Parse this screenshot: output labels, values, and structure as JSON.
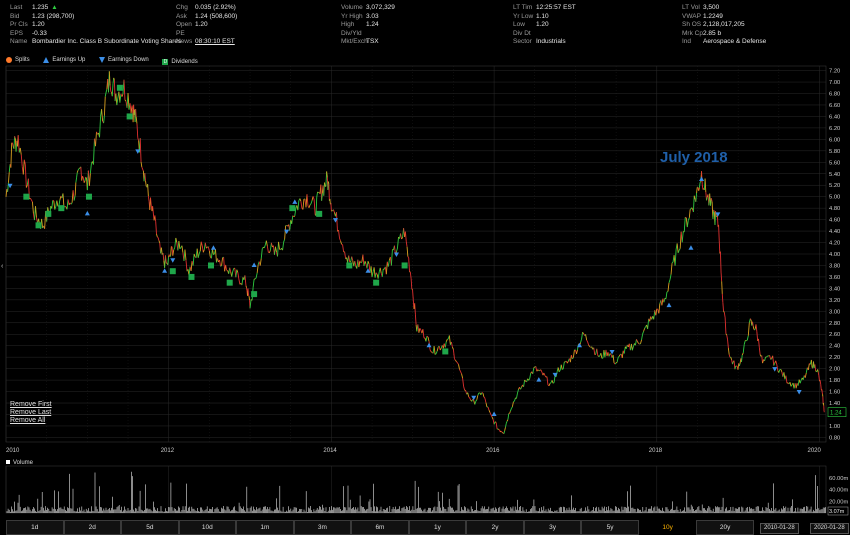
{
  "quote": {
    "col1": [
      {
        "k": "Last",
        "v": "1.235",
        "arrow": "▲"
      },
      {
        "k": "Bid",
        "v": "1.23 (298,700)"
      },
      {
        "k": "Pr Cls",
        "v": "1.20"
      },
      {
        "k": "EPS",
        "v": "-0.33"
      },
      {
        "k": "Name",
        "v": "Bombardier Inc. Class B Subordinate Voting Shares"
      }
    ],
    "col2": [
      {
        "k": "Chg",
        "v": "0.035 (2.92%)"
      },
      {
        "k": "Ask",
        "v": "1.24 (508,600)"
      },
      {
        "k": "Open",
        "v": "1.20"
      },
      {
        "k": "PE",
        "v": ""
      },
      {
        "k": "News",
        "v": "08:30:10 EST"
      }
    ],
    "col3": [
      {
        "k": "Volume",
        "v": "3,072,329"
      },
      {
        "k": "Yr High",
        "v": "3.03"
      },
      {
        "k": "High",
        "v": "1.24"
      },
      {
        "k": "Div/Yld",
        "v": ""
      },
      {
        "k": "Mkt/Exch",
        "v": "TSX"
      }
    ],
    "col4": [
      {
        "k": "LT Tim",
        "v": "12:25:57 EST"
      },
      {
        "k": "Yr Low",
        "v": "1.10"
      },
      {
        "k": "Low",
        "v": "1.20"
      },
      {
        "k": "Div Dt",
        "v": ""
      },
      {
        "k": "Sector",
        "v": "Industrials"
      }
    ],
    "col5": [
      {
        "k": "LT Vol",
        "v": "3,500"
      },
      {
        "k": "VWAP",
        "v": "1.2249"
      },
      {
        "k": "Sh OS",
        "v": "2,128,017,205"
      },
      {
        "k": "Mrk Cp",
        "v": "2.85 b"
      },
      {
        "k": "Ind",
        "v": "Aerospace & Defense"
      }
    ]
  },
  "legend": {
    "splits": "Splits",
    "earnings_up": "Earnings Up",
    "earnings_down": "Earnings Down",
    "dividends": "Dividends",
    "dividend_marker": "D"
  },
  "annotation": {
    "text": "July 2018"
  },
  "left_handle": "‹",
  "remove_links": {
    "first": "Remove First",
    "last": "Remove Last",
    "all": "Remove All"
  },
  "volume_label": "Volume",
  "tabs": [
    "1d",
    "2d",
    "5d",
    "10d",
    "1m",
    "3m",
    "6m",
    "1y",
    "2y",
    "3y",
    "5y",
    "10y",
    "20y"
  ],
  "selected_tab": "10y",
  "date_range": {
    "start": "2010-01-28",
    "end": "2020-01-28"
  },
  "colors": {
    "up": "#2ecc40",
    "down": "#e03030",
    "accent_tab": "#ffb400",
    "annotation": "#1f5fa8",
    "earnings_up": "#3b8ee8",
    "dividend": "#1fa64a"
  },
  "chart_data": {
    "type": "line",
    "y_axis_ticks": [
      "7.20",
      "7.00",
      "6.80",
      "6.60",
      "6.40",
      "6.20",
      "6.00",
      "5.80",
      "5.60",
      "5.40",
      "5.20",
      "5.00",
      "4.80",
      "4.60",
      "4.40",
      "4.20",
      "4.00",
      "3.80",
      "3.60",
      "3.40",
      "3.20",
      "3.00",
      "2.80",
      "2.60",
      "2.40",
      "2.20",
      "2.00",
      "1.80",
      "1.60",
      "1.40",
      "1.20",
      "1.00",
      "0.80"
    ],
    "ylim": [
      0.72,
      7.28
    ],
    "x_axis_ticks": [
      "2010",
      "2012",
      "2014",
      "2016",
      "2018",
      "2020"
    ],
    "xlim": [
      2010.0,
      2020.08
    ],
    "price_points": [
      [
        2010.0,
        5.0
      ],
      [
        2010.08,
        5.9
      ],
      [
        2010.15,
        6.0
      ],
      [
        2010.25,
        5.3
      ],
      [
        2010.35,
        4.7
      ],
      [
        2010.45,
        4.5
      ],
      [
        2010.55,
        4.8
      ],
      [
        2010.65,
        5.0
      ],
      [
        2010.75,
        4.8
      ],
      [
        2010.85,
        5.1
      ],
      [
        2010.92,
        5.5
      ],
      [
        2011.0,
        5.2
      ],
      [
        2011.1,
        5.9
      ],
      [
        2011.2,
        6.5
      ],
      [
        2011.28,
        7.1
      ],
      [
        2011.35,
        6.8
      ],
      [
        2011.45,
        6.9
      ],
      [
        2011.55,
        6.6
      ],
      [
        2011.6,
        6.3
      ],
      [
        2011.68,
        5.6
      ],
      [
        2011.75,
        5.0
      ],
      [
        2011.82,
        4.6
      ],
      [
        2011.9,
        4.0
      ],
      [
        2011.98,
        3.8
      ],
      [
        2012.05,
        4.1
      ],
      [
        2012.15,
        4.2
      ],
      [
        2012.25,
        3.7
      ],
      [
        2012.35,
        4.0
      ],
      [
        2012.45,
        4.2
      ],
      [
        2012.55,
        4.0
      ],
      [
        2012.65,
        3.9
      ],
      [
        2012.75,
        3.7
      ],
      [
        2012.85,
        3.6
      ],
      [
        2012.95,
        3.5
      ],
      [
        2013.0,
        3.1
      ],
      [
        2013.1,
        3.8
      ],
      [
        2013.2,
        4.2
      ],
      [
        2013.3,
        4.0
      ],
      [
        2013.4,
        4.2
      ],
      [
        2013.5,
        4.6
      ],
      [
        2013.6,
        4.9
      ],
      [
        2013.7,
        5.0
      ],
      [
        2013.8,
        4.8
      ],
      [
        2013.88,
        5.1
      ],
      [
        2013.95,
        5.3
      ],
      [
        2014.0,
        4.9
      ],
      [
        2014.1,
        4.4
      ],
      [
        2014.2,
        3.9
      ],
      [
        2014.3,
        3.8
      ],
      [
        2014.4,
        3.9
      ],
      [
        2014.5,
        3.7
      ],
      [
        2014.6,
        3.7
      ],
      [
        2014.7,
        3.8
      ],
      [
        2014.8,
        4.1
      ],
      [
        2014.9,
        4.4
      ],
      [
        2014.98,
        3.6
      ],
      [
        2015.05,
        2.7
      ],
      [
        2015.15,
        2.6
      ],
      [
        2015.25,
        2.3
      ],
      [
        2015.35,
        2.4
      ],
      [
        2015.45,
        2.5
      ],
      [
        2015.55,
        2.1
      ],
      [
        2015.65,
        1.6
      ],
      [
        2015.75,
        1.4
      ],
      [
        2015.85,
        1.6
      ],
      [
        2015.95,
        1.2
      ],
      [
        2016.05,
        0.95
      ],
      [
        2016.12,
        0.9
      ],
      [
        2016.2,
        1.3
      ],
      [
        2016.3,
        1.6
      ],
      [
        2016.4,
        1.8
      ],
      [
        2016.5,
        2.0
      ],
      [
        2016.6,
        1.9
      ],
      [
        2016.7,
        1.7
      ],
      [
        2016.8,
        2.0
      ],
      [
        2016.9,
        2.1
      ],
      [
        2017.0,
        2.3
      ],
      [
        2017.1,
        2.6
      ],
      [
        2017.2,
        2.4
      ],
      [
        2017.3,
        2.2
      ],
      [
        2017.4,
        2.3
      ],
      [
        2017.5,
        2.1
      ],
      [
        2017.6,
        2.3
      ],
      [
        2017.7,
        2.4
      ],
      [
        2017.8,
        2.5
      ],
      [
        2017.9,
        2.8
      ],
      [
        2018.0,
        3.0
      ],
      [
        2018.1,
        3.2
      ],
      [
        2018.2,
        3.8
      ],
      [
        2018.3,
        4.3
      ],
      [
        2018.4,
        4.7
      ],
      [
        2018.48,
        5.0
      ],
      [
        2018.55,
        5.4
      ],
      [
        2018.62,
        5.0
      ],
      [
        2018.7,
        4.7
      ],
      [
        2018.76,
        4.5
      ],
      [
        2018.82,
        3.0
      ],
      [
        2018.9,
        2.2
      ],
      [
        2018.98,
        2.0
      ],
      [
        2019.05,
        2.2
      ],
      [
        2019.15,
        2.8
      ],
      [
        2019.22,
        2.7
      ],
      [
        2019.3,
        2.1
      ],
      [
        2019.4,
        2.2
      ],
      [
        2019.5,
        2.0
      ],
      [
        2019.6,
        1.8
      ],
      [
        2019.7,
        1.7
      ],
      [
        2019.8,
        1.8
      ],
      [
        2019.9,
        2.1
      ],
      [
        2019.97,
        2.0
      ],
      [
        2020.03,
        1.6
      ],
      [
        2020.06,
        1.24
      ]
    ],
    "earnings_up": [
      [
        2011.0,
        4.7
      ],
      [
        2011.95,
        3.7
      ],
      [
        2012.55,
        4.1
      ],
      [
        2013.05,
        3.8
      ],
      [
        2013.55,
        4.9
      ],
      [
        2014.45,
        3.7
      ],
      [
        2015.2,
        2.4
      ],
      [
        2016.0,
        1.2
      ],
      [
        2016.55,
        1.8
      ],
      [
        2017.05,
        2.4
      ],
      [
        2018.15,
        3.1
      ],
      [
        2018.42,
        4.1
      ],
      [
        2018.55,
        5.3
      ]
    ],
    "earnings_down": [
      [
        2010.05,
        5.2
      ],
      [
        2011.62,
        5.8
      ],
      [
        2012.05,
        3.9
      ],
      [
        2013.45,
        4.4
      ],
      [
        2014.05,
        4.6
      ],
      [
        2014.8,
        4.0
      ],
      [
        2015.75,
        1.5
      ],
      [
        2016.75,
        1.9
      ],
      [
        2017.45,
        2.3
      ],
      [
        2018.75,
        4.7
      ],
      [
        2019.45,
        2.0
      ],
      [
        2019.75,
        1.6
      ]
    ],
    "dividends": [
      [
        2010.25,
        5.0
      ],
      [
        2010.4,
        4.5
      ],
      [
        2010.52,
        4.7
      ],
      [
        2010.68,
        4.8
      ],
      [
        2011.02,
        5.0
      ],
      [
        2011.4,
        6.9
      ],
      [
        2011.52,
        6.4
      ],
      [
        2012.05,
        3.7
      ],
      [
        2012.28,
        3.6
      ],
      [
        2012.52,
        3.8
      ],
      [
        2012.75,
        3.5
      ],
      [
        2013.05,
        3.3
      ],
      [
        2013.52,
        4.8
      ],
      [
        2013.85,
        4.7
      ],
      [
        2014.22,
        3.8
      ],
      [
        2014.55,
        3.5
      ],
      [
        2014.9,
        3.8
      ],
      [
        2015.4,
        2.3
      ]
    ],
    "volume_axis_ticks": [
      "60.00m",
      "40.00m",
      "20.00m"
    ],
    "volume_last": "3.07m",
    "last_price_label": "1.24",
    "volume_ylim": [
      0,
      80
    ]
  }
}
